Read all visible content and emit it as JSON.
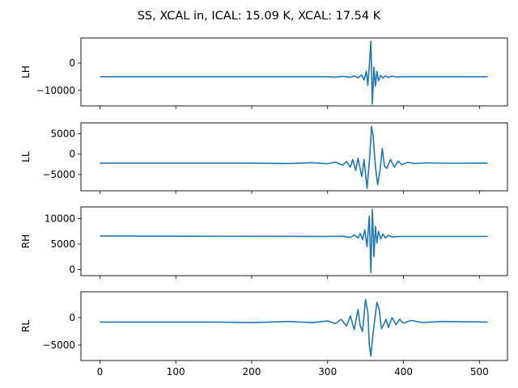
{
  "title": "SS, XCAL in, ICAL: 15.09 K, XCAL: 17.54 K",
  "colors": {
    "line": "#1f77b4"
  },
  "chart_data": {
    "type": "line",
    "title": "SS, XCAL in, ICAL: 15.09 K, XCAL: 17.54 K",
    "shared_x": true,
    "xlim": [
      -25,
      537
    ],
    "xticks": [
      0,
      100,
      200,
      300,
      400,
      500
    ],
    "xtick_labels": [
      "0",
      "100",
      "200",
      "300",
      "400",
      "500"
    ],
    "grid": false,
    "legend": "none",
    "panels": [
      {
        "ylabel": "LH",
        "ylim": [
          -15700,
          9200
        ],
        "yticks": [
          0,
          -10000
        ],
        "ytick_labels": [
          "0",
          "−10000"
        ],
        "baseline": -5000,
        "points": [
          [
            0,
            -5000
          ],
          [
            300,
            -5000
          ],
          [
            310,
            -5150
          ],
          [
            320,
            -4850
          ],
          [
            330,
            -5250
          ],
          [
            335,
            -4700
          ],
          [
            340,
            -5400
          ],
          [
            345,
            -4400
          ],
          [
            348,
            -6200
          ],
          [
            351,
            -3000
          ],
          [
            353,
            -8200
          ],
          [
            355,
            -1000
          ],
          [
            357,
            8000
          ],
          [
            359,
            -15000
          ],
          [
            361,
            -1500
          ],
          [
            363,
            -8500
          ],
          [
            365,
            -3000
          ],
          [
            367,
            -6500
          ],
          [
            370,
            -4500
          ],
          [
            373,
            -5500
          ],
          [
            376,
            -4700
          ],
          [
            380,
            -5200
          ],
          [
            385,
            -4800
          ],
          [
            390,
            -5050
          ],
          [
            400,
            -5000
          ],
          [
            511,
            -5000
          ]
        ]
      },
      {
        "ylabel": "LL",
        "ylim": [
          -9000,
          7700
        ],
        "yticks": [
          5000,
          0,
          -5000
        ],
        "ytick_labels": [
          "5000",
          "0",
          "−5000"
        ],
        "baseline": -2200,
        "points": [
          [
            0,
            -2200
          ],
          [
            200,
            -2200
          ],
          [
            250,
            -2300
          ],
          [
            280,
            -2100
          ],
          [
            300,
            -2350
          ],
          [
            310,
            -1950
          ],
          [
            320,
            -2700
          ],
          [
            325,
            -1800
          ],
          [
            330,
            -3200
          ],
          [
            333,
            -1300
          ],
          [
            337,
            -4000
          ],
          [
            340,
            -1000
          ],
          [
            345,
            -5500
          ],
          [
            348,
            -1300
          ],
          [
            352,
            -8400
          ],
          [
            355,
            -2000
          ],
          [
            358,
            6800
          ],
          [
            360,
            4500
          ],
          [
            363,
            -3000
          ],
          [
            366,
            -7500
          ],
          [
            369,
            -4000
          ],
          [
            372,
            1400
          ],
          [
            375,
            -3000
          ],
          [
            378,
            -3500
          ],
          [
            383,
            -1300
          ],
          [
            388,
            -3200
          ],
          [
            393,
            -1700
          ],
          [
            398,
            -2600
          ],
          [
            405,
            -2000
          ],
          [
            415,
            -2300
          ],
          [
            430,
            -2150
          ],
          [
            460,
            -2250
          ],
          [
            511,
            -2200
          ]
        ]
      },
      {
        "ylabel": "RH",
        "ylim": [
          -1200,
          12300
        ],
        "yticks": [
          10000,
          5000,
          0
        ],
        "ytick_labels": [
          "10000",
          "5000",
          "0"
        ],
        "baseline": 6500,
        "points": [
          [
            0,
            6600
          ],
          [
            100,
            6550
          ],
          [
            300,
            6500
          ],
          [
            320,
            6550
          ],
          [
            330,
            6300
          ],
          [
            335,
            6800
          ],
          [
            340,
            6200
          ],
          [
            343,
            7100
          ],
          [
            346,
            5900
          ],
          [
            349,
            7800
          ],
          [
            352,
            4500
          ],
          [
            355,
            10500
          ],
          [
            357,
            -600
          ],
          [
            359,
            11800
          ],
          [
            361,
            2500
          ],
          [
            363,
            8500
          ],
          [
            365,
            5200
          ],
          [
            367,
            7500
          ],
          [
            370,
            6000
          ],
          [
            373,
            7000
          ],
          [
            376,
            6200
          ],
          [
            380,
            6700
          ],
          [
            385,
            6400
          ],
          [
            395,
            6500
          ],
          [
            511,
            6500
          ]
        ]
      },
      {
        "ylabel": "RL",
        "ylim": [
          -7800,
          4700
        ],
        "yticks": [
          0,
          -5000
        ],
        "ytick_labels": [
          "0",
          "−5000"
        ],
        "baseline": -800,
        "points": [
          [
            0,
            -800
          ],
          [
            150,
            -800
          ],
          [
            200,
            -900
          ],
          [
            250,
            -700
          ],
          [
            280,
            -900
          ],
          [
            300,
            -600
          ],
          [
            310,
            -1100
          ],
          [
            318,
            -300
          ],
          [
            325,
            -1500
          ],
          [
            330,
            300
          ],
          [
            335,
            -2200
          ],
          [
            340,
            1500
          ],
          [
            343,
            -1500
          ],
          [
            346,
            -2500
          ],
          [
            350,
            3300
          ],
          [
            353,
            1000
          ],
          [
            355,
            -5000
          ],
          [
            357,
            -7000
          ],
          [
            359,
            -4000
          ],
          [
            362,
            -500
          ],
          [
            365,
            2800
          ],
          [
            368,
            1500
          ],
          [
            371,
            -2000
          ],
          [
            374,
            -1200
          ],
          [
            377,
            -300
          ],
          [
            380,
            -1800
          ],
          [
            385,
            0
          ],
          [
            390,
            -1300
          ],
          [
            395,
            -300
          ],
          [
            400,
            -1000
          ],
          [
            410,
            -500
          ],
          [
            425,
            -900
          ],
          [
            450,
            -700
          ],
          [
            511,
            -800
          ]
        ]
      }
    ]
  }
}
